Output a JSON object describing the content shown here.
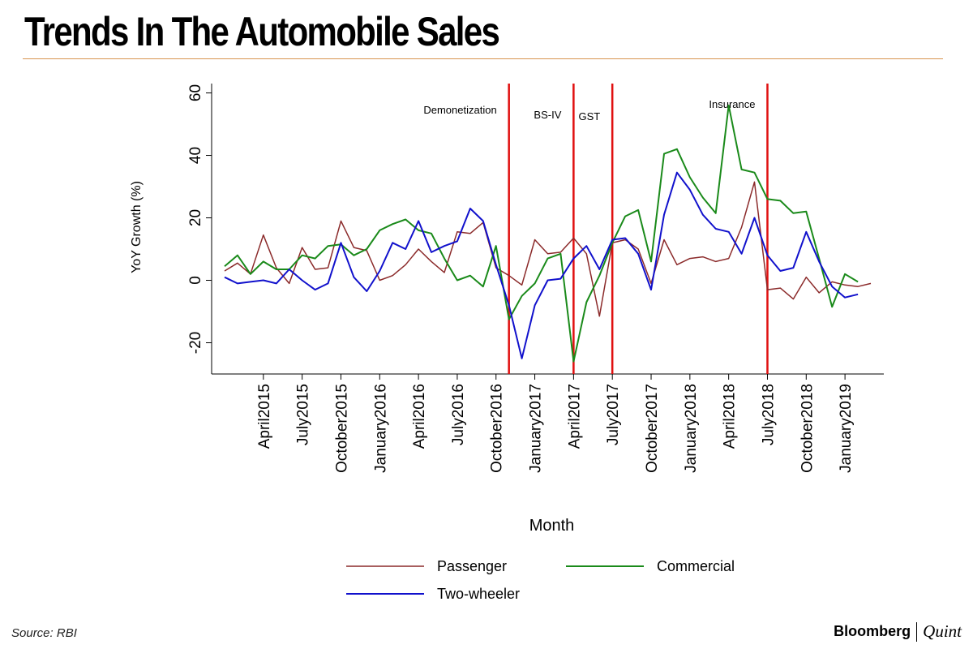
{
  "header": {
    "title": "Trends In The Automobile Sales"
  },
  "footer": {
    "source": "Source: RBI",
    "brand_primary": "Bloomberg",
    "brand_secondary": "Quint"
  },
  "chart_data": {
    "type": "line",
    "xlabel": "Month",
    "ylabel": "YoY Growth (%)",
    "ylim": [
      -30,
      63
    ],
    "yticks": [
      -20,
      0,
      20,
      40,
      60
    ],
    "grid": false,
    "legend_position": "bottom",
    "x_start": "January2015",
    "xticks": [
      {
        "label": "April2015",
        "index": 3
      },
      {
        "label": "July2015",
        "index": 6
      },
      {
        "label": "October2015",
        "index": 9
      },
      {
        "label": "January2016",
        "index": 12
      },
      {
        "label": "April2016",
        "index": 15
      },
      {
        "label": "July2016",
        "index": 18
      },
      {
        "label": "October2016",
        "index": 21
      },
      {
        "label": "January2017",
        "index": 24
      },
      {
        "label": "April2017",
        "index": 27
      },
      {
        "label": "July2017",
        "index": 30
      },
      {
        "label": "October2017",
        "index": 33
      },
      {
        "label": "January2018",
        "index": 36
      },
      {
        "label": "April2018",
        "index": 39
      },
      {
        "label": "July2018",
        "index": 42
      },
      {
        "label": "October2018",
        "index": 45
      },
      {
        "label": "January2019",
        "index": 48
      }
    ],
    "events": [
      {
        "label": "Demonetization",
        "index": 22,
        "label_side": "left"
      },
      {
        "label": "BS-IV",
        "index": 27,
        "label_side": "left"
      },
      {
        "label": "GST",
        "index": 30,
        "label_side": "left"
      },
      {
        "label": "Insurance",
        "index": 42,
        "label_side": "left"
      }
    ],
    "series": [
      {
        "name": "Passenger",
        "color": "#8b2a2a",
        "values": [
          3,
          5.5,
          2,
          14.5,
          4,
          -1,
          10.5,
          3.5,
          4,
          19,
          10.5,
          9.5,
          0,
          1.5,
          5,
          10,
          6,
          2.5,
          15.5,
          15,
          18.5,
          4,
          1.5,
          -1.5,
          13,
          8.5,
          9,
          13.5,
          8.5,
          -11.5,
          12,
          13,
          10,
          -1,
          13,
          5,
          7,
          7.5,
          6,
          7,
          17,
          31.5,
          -3,
          -2.5,
          -6,
          1,
          -4,
          -0.5,
          -1.5,
          -2,
          -1
        ]
      },
      {
        "name": "Commercial",
        "color": "#1a8a1a",
        "values": [
          4.5,
          8,
          2,
          6,
          3.5,
          3.5,
          8,
          7,
          11,
          11.5,
          8,
          10,
          16,
          18,
          19.5,
          16,
          15,
          7,
          0,
          1.5,
          -2,
          11,
          -12.5,
          -5,
          -1,
          7,
          8.5,
          -26,
          -7,
          1.5,
          12,
          20.5,
          22.5,
          6,
          40.5,
          42,
          33,
          26.5,
          21.5,
          56,
          35.5,
          34.5,
          26,
          25.5,
          21.5,
          22,
          7,
          -8.5,
          2,
          -0.5
        ]
      },
      {
        "name": "Two-wheeler",
        "color": "#1111cc",
        "values": [
          1,
          -1,
          -0.5,
          0,
          -1,
          3.5,
          0,
          -3,
          -1,
          12,
          1,
          -3.5,
          3,
          12,
          10,
          19,
          9,
          11,
          12.5,
          23,
          19,
          5,
          -8,
          -25,
          -8,
          0,
          0.5,
          7,
          11,
          3.5,
          13,
          13.5,
          8.5,
          -3,
          21,
          34.5,
          29,
          21,
          16.5,
          15.5,
          8.5,
          20,
          8,
          3,
          4,
          15.5,
          6,
          -2,
          -5.5,
          -4.5
        ]
      }
    ]
  }
}
